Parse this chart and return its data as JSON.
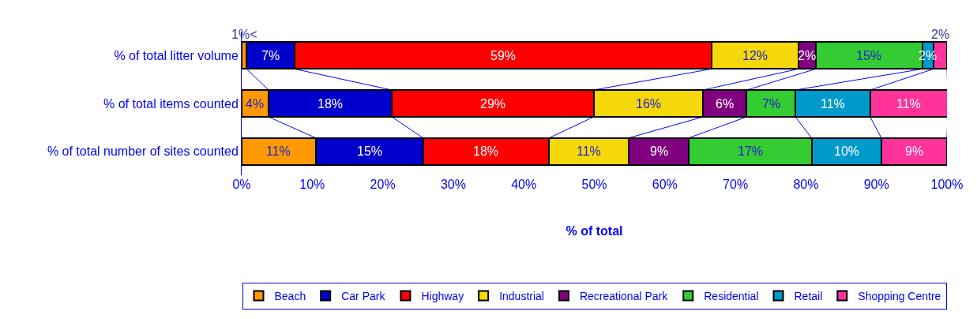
{
  "chart_data": {
    "type": "bar",
    "orientation": "horizontal",
    "stacked": true,
    "xlabel": "% of total",
    "categories": [
      "% of total litter volume",
      "% of total items counted",
      "% of total number of sites counted"
    ],
    "series": [
      {
        "name": "Beach",
        "color": "#ff9900",
        "values": [
          0.7,
          3.8,
          10.5
        ],
        "value_labels": [
          "1%<",
          "4%",
          "11%"
        ]
      },
      {
        "name": "Car Park",
        "color": "#0000cc",
        "values": [
          6.8,
          17.5,
          15.2
        ],
        "value_labels": [
          "7%",
          "18%",
          "15%"
        ]
      },
      {
        "name": "Highway",
        "color": "#ff0000",
        "values": [
          59.1,
          28.6,
          17.9
        ],
        "value_labels": [
          "59%",
          "29%",
          "18%"
        ]
      },
      {
        "name": "Industrial",
        "color": "#f5d80a",
        "values": [
          12.3,
          15.5,
          11.3
        ],
        "value_labels": [
          "12%",
          "16%",
          "11%"
        ]
      },
      {
        "name": "Recreational Park",
        "color": "#800080",
        "values": [
          2.5,
          6.2,
          8.5
        ],
        "value_labels": [
          "2%",
          "6%",
          "9%"
        ]
      },
      {
        "name": "Residential",
        "color": "#33cc33",
        "values": [
          15.1,
          6.9,
          17.4
        ],
        "value_labels": [
          "15%",
          "7%",
          "17%"
        ]
      },
      {
        "name": "Retail",
        "color": "#0099cc",
        "values": [
          1.6,
          10.6,
          9.9
        ],
        "value_labels": [
          "2%",
          "11%",
          "10%"
        ]
      },
      {
        "name": "Shopping Centre",
        "color": "#ff3399",
        "values": [
          1.9,
          11.0,
          9.3
        ],
        "value_labels": [
          "2%",
          "11%",
          "9%"
        ]
      }
    ],
    "xlim": [
      0,
      100
    ],
    "xticks": [
      {
        "value": 0,
        "label": "0%"
      },
      {
        "value": 10,
        "label": "10%"
      },
      {
        "value": 20,
        "label": "20%"
      },
      {
        "value": 30,
        "label": "30%"
      },
      {
        "value": 40,
        "label": "40%"
      },
      {
        "value": 50,
        "label": "50%"
      },
      {
        "value": 60,
        "label": "60%"
      },
      {
        "value": 70,
        "label": "70%"
      },
      {
        "value": 80,
        "label": "80%"
      },
      {
        "value": 90,
        "label": "90%"
      },
      {
        "value": 100,
        "label": "100%"
      }
    ],
    "grid": false,
    "legend": "bottom"
  }
}
